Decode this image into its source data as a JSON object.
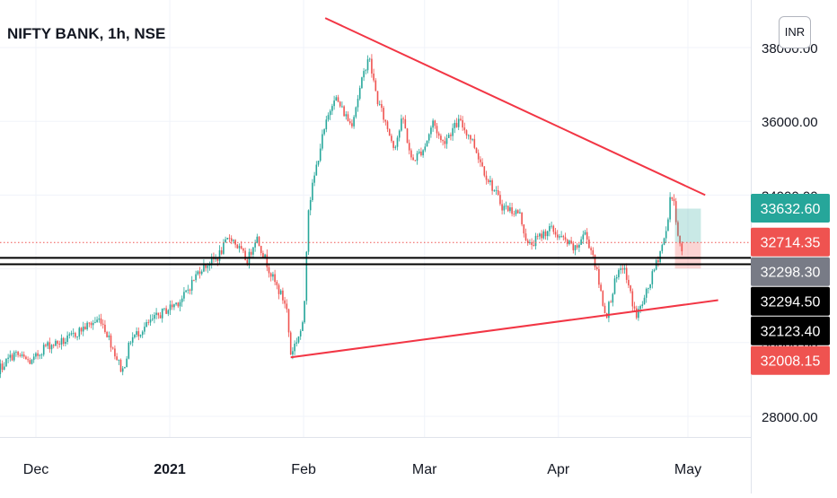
{
  "header": {
    "symbol_title": "NIFTY BANK, 1h, NSE",
    "currency_button": "INR"
  },
  "colors": {
    "up": "#26a69a",
    "down": "#ef5350",
    "trendline": "#f23645",
    "horizontal": "#000000",
    "grid": "#f0f3fa",
    "axis_text": "#131722"
  },
  "chart_data": {
    "type": "candlestick",
    "title": "NIFTY BANK, 1h, NSE",
    "x_ticks": [
      {
        "label": "Dec",
        "date": "2020-12-01",
        "bold": false
      },
      {
        "label": "2021",
        "date": "2021-01-01",
        "bold": true
      },
      {
        "label": "Feb",
        "date": "2021-02-01",
        "bold": false
      },
      {
        "label": "Mar",
        "date": "2021-03-01",
        "bold": false
      },
      {
        "label": "Apr",
        "date": "2021-04-01",
        "bold": false
      },
      {
        "label": "May",
        "date": "2021-05-01",
        "bold": false
      }
    ],
    "y_ticks": [
      28000,
      30000,
      32000,
      34000,
      36000,
      38000
    ],
    "ylim": [
      27600,
      38950
    ],
    "grid": true,
    "price_labels": [
      {
        "text": "33632.60",
        "bg": "#26a69a",
        "fg": "#ffffff",
        "value": 33632.6
      },
      {
        "text": "32714.35",
        "bg": "#ef5350",
        "fg": "#ffffff",
        "value": 32714.35
      },
      {
        "text": "32298.30",
        "bg": "#787b86",
        "fg": "#ffffff",
        "value": 32298.3
      },
      {
        "text": "32294.50",
        "bg": "#000000",
        "fg": "#ffffff",
        "value": 32294.5
      },
      {
        "text": "32123.40",
        "bg": "#000000",
        "fg": "#ffffff",
        "value": 32123.4
      },
      {
        "text": "32008.15",
        "bg": "#ef5350",
        "fg": "#ffffff",
        "value": 32008.15
      }
    ],
    "horizontal_lines": [
      {
        "price": 32298.3,
        "color": "#000000"
      },
      {
        "price": 32123.4,
        "color": "#000000"
      },
      {
        "price": 32714.35,
        "color": "#ef5350",
        "dotted": true
      }
    ],
    "trendlines": [
      {
        "from": {
          "date": "2021-02-06",
          "price": 38800
        },
        "to": {
          "date": "2021-05-05",
          "price": 34000
        }
      },
      {
        "from": {
          "date": "2021-01-29",
          "price": 29600
        },
        "to": {
          "date": "2021-05-08",
          "price": 31150
        }
      }
    ],
    "position": {
      "start": "2021-04-28",
      "end": "2021-05-04",
      "entry": 32714.35,
      "target": 33632.6,
      "stop": 32008.15
    },
    "price_path": [
      [
        "2020-11-20",
        29000
      ],
      [
        "2020-11-26",
        29700
      ],
      [
        "2020-11-30",
        29450
      ],
      [
        "2020-12-03",
        29900
      ],
      [
        "2020-12-08",
        30050
      ],
      [
        "2020-12-12",
        30400
      ],
      [
        "2020-12-16",
        30650
      ],
      [
        "2020-12-18",
        30100
      ],
      [
        "2020-12-21",
        29200
      ],
      [
        "2020-12-23",
        30100
      ],
      [
        "2020-12-29",
        30700
      ],
      [
        "2021-01-04",
        31200
      ],
      [
        "2021-01-08",
        32000
      ],
      [
        "2021-01-12",
        32300
      ],
      [
        "2021-01-15",
        32900
      ],
      [
        "2021-01-19",
        32200
      ],
      [
        "2021-01-21",
        32900
      ],
      [
        "2021-01-25",
        31700
      ],
      [
        "2021-01-28",
        31000
      ],
      [
        "2021-01-29",
        29700
      ],
      [
        "2021-02-01",
        30500
      ],
      [
        "2021-02-02",
        33600
      ],
      [
        "2021-02-05",
        35400
      ],
      [
        "2021-02-08",
        36700
      ],
      [
        "2021-02-12",
        35900
      ],
      [
        "2021-02-16",
        37800
      ],
      [
        "2021-02-18",
        36600
      ],
      [
        "2021-02-22",
        35300
      ],
      [
        "2021-02-24",
        36100
      ],
      [
        "2021-02-26",
        34900
      ],
      [
        "2021-03-01",
        35300
      ],
      [
        "2021-03-03",
        36000
      ],
      [
        "2021-03-05",
        35400
      ],
      [
        "2021-03-09",
        36000
      ],
      [
        "2021-03-12",
        35500
      ],
      [
        "2021-03-15",
        34600
      ],
      [
        "2021-03-19",
        33700
      ],
      [
        "2021-03-23",
        33500
      ],
      [
        "2021-03-25",
        32600
      ],
      [
        "2021-03-30",
        33100
      ],
      [
        "2021-04-01",
        32900
      ],
      [
        "2021-04-05",
        32500
      ],
      [
        "2021-04-07",
        33000
      ],
      [
        "2021-04-09",
        32400
      ],
      [
        "2021-04-12",
        30700
      ],
      [
        "2021-04-14",
        31600
      ],
      [
        "2021-04-16",
        32100
      ],
      [
        "2021-04-19",
        30700
      ],
      [
        "2021-04-21",
        31200
      ],
      [
        "2021-04-23",
        31900
      ],
      [
        "2021-04-26",
        33000
      ],
      [
        "2021-04-27",
        34100
      ],
      [
        "2021-04-28",
        33600
      ],
      [
        "2021-04-29",
        32700
      ],
      [
        "2021-04-30",
        32300
      ]
    ]
  }
}
